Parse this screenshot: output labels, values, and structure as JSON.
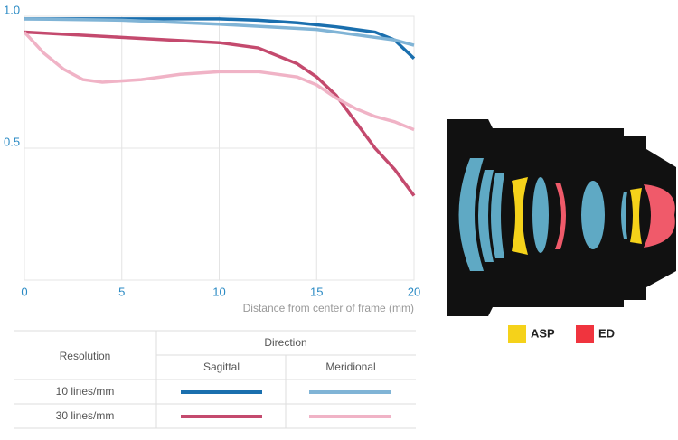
{
  "chart_data": {
    "type": "line",
    "xlabel": "Distance from center of frame (mm)",
    "xlim": [
      0,
      20
    ],
    "xticks": [
      0,
      5,
      10,
      15,
      20
    ],
    "ylim": [
      0,
      1
    ],
    "yticks": [
      0.5,
      {
        "value": 1,
        "label": "1.0"
      }
    ],
    "grid": true,
    "series": [
      {
        "color": "#1a6fae",
        "x": [
          0,
          5,
          10,
          12,
          14,
          16,
          17,
          18,
          19,
          20
        ],
        "values": [
          0.99,
          0.99,
          0.99,
          0.985,
          0.975,
          0.96,
          0.95,
          0.94,
          0.91,
          0.84
        ]
      },
      {
        "color": "#80b4d6",
        "x": [
          0,
          5,
          10,
          15,
          17,
          19,
          20
        ],
        "values": [
          0.99,
          0.985,
          0.97,
          0.95,
          0.93,
          0.91,
          0.89
        ]
      },
      {
        "color": "#c44a6e",
        "x": [
          0,
          5,
          10,
          12,
          14,
          15,
          16,
          17,
          18,
          19,
          20
        ],
        "values": [
          0.94,
          0.92,
          0.9,
          0.88,
          0.82,
          0.77,
          0.7,
          0.6,
          0.5,
          0.42,
          0.32
        ]
      },
      {
        "color": "#f0b3c6",
        "x": [
          0,
          1,
          2,
          3,
          4,
          6,
          8,
          10,
          12,
          14,
          15,
          16,
          17,
          18,
          19,
          20
        ],
        "values": [
          0.94,
          0.86,
          0.8,
          0.76,
          0.75,
          0.76,
          0.78,
          0.79,
          0.79,
          0.77,
          0.74,
          0.69,
          0.65,
          0.62,
          0.6,
          0.57
        ]
      }
    ]
  },
  "legend_table": {
    "row_header": "Resolution",
    "column_group": "Direction",
    "columns": [
      "Sagittal",
      "Meridional"
    ],
    "rows": [
      "10 lines/mm",
      "30 lines/mm"
    ]
  },
  "lens_legend": {
    "aspherical": "ASP",
    "extra_low_dispersion": "ED"
  }
}
